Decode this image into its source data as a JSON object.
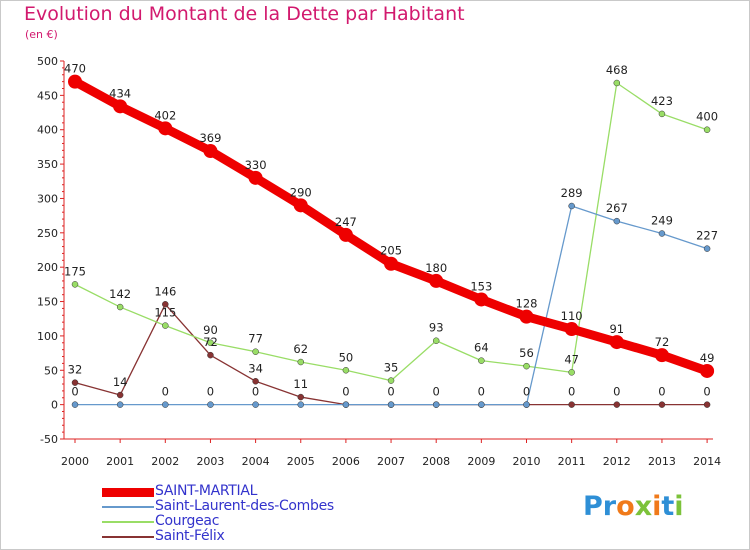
{
  "title": "Evolution du Montant de la Dette par Habitant",
  "subtitle": "(en €)",
  "logo": {
    "text": "Proxiti",
    "letters": [
      {
        "ch": "P",
        "color": "#2e8fd6"
      },
      {
        "ch": "r",
        "color": "#2e8fd6"
      },
      {
        "ch": "o",
        "color": "#f07a1a"
      },
      {
        "ch": "x",
        "color": "#7cc23a"
      },
      {
        "ch": "i",
        "color": "#f07a1a"
      },
      {
        "ch": "t",
        "color": "#2e8fd6"
      },
      {
        "ch": "i",
        "color": "#7cc23a"
      }
    ]
  },
  "chart_data": {
    "type": "line",
    "title": "Evolution du Montant de la Dette par Habitant",
    "ylabel": "(en €)",
    "ylim": [
      -50,
      500
    ],
    "yticks": [
      -50,
      0,
      50,
      100,
      150,
      200,
      250,
      300,
      350,
      400,
      450,
      500
    ],
    "x": [
      "2000",
      "2001",
      "2002",
      "2003",
      "2004",
      "2005",
      "2006",
      "2007",
      "2008",
      "2009",
      "2010",
      "2011",
      "2012",
      "2013",
      "2014"
    ],
    "grid": false,
    "legend_position": "bottom-left",
    "series": [
      {
        "name": "SAINT-MARTIAL",
        "color": "#ee0000",
        "values": [
          470,
          434,
          402,
          369,
          330,
          290,
          247,
          205,
          180,
          153,
          128,
          110,
          91,
          72,
          49
        ]
      },
      {
        "name": "Saint-Laurent-des-Combes",
        "color": "#6699cc",
        "values": [
          0,
          0,
          0,
          0,
          0,
          0,
          0,
          0,
          0,
          0,
          0,
          289,
          267,
          249,
          227
        ]
      },
      {
        "name": "Courgeac",
        "color": "#99dd66",
        "values": [
          175,
          142,
          115,
          90,
          77,
          62,
          50,
          35,
          93,
          64,
          56,
          47,
          468,
          423,
          400
        ]
      },
      {
        "name": "Saint-Félix",
        "color": "#883333",
        "values": [
          32,
          14,
          146,
          72,
          34,
          11,
          0,
          0,
          0,
          0,
          0,
          0,
          0,
          0,
          0
        ]
      }
    ],
    "labels": [
      {
        "value": "470",
        "series": 0,
        "index": 0
      },
      {
        "value": "434",
        "series": 0,
        "index": 1
      },
      {
        "value": "402",
        "series": 0,
        "index": 2
      },
      {
        "value": "369",
        "series": 0,
        "index": 3
      },
      {
        "value": "330",
        "series": 0,
        "index": 4
      },
      {
        "value": "290",
        "series": 0,
        "index": 5
      },
      {
        "value": "247",
        "series": 0,
        "index": 6
      },
      {
        "value": "205",
        "series": 0,
        "index": 7
      },
      {
        "value": "180",
        "series": 0,
        "index": 8
      },
      {
        "value": "153",
        "series": 0,
        "index": 9
      },
      {
        "value": "128",
        "series": 0,
        "index": 10
      },
      {
        "value": "110",
        "series": 0,
        "index": 11
      },
      {
        "value": "91",
        "series": 0,
        "index": 12
      },
      {
        "value": "72",
        "series": 0,
        "index": 13
      },
      {
        "value": "49",
        "series": 0,
        "index": 14
      },
      {
        "value": "0",
        "series": 1,
        "index": 0
      },
      {
        "value": "0",
        "series": 1,
        "index": 2
      },
      {
        "value": "0",
        "series": 1,
        "index": 3
      },
      {
        "value": "0",
        "series": 1,
        "index": 4
      },
      {
        "value": "0",
        "series": 1,
        "index": 6
      },
      {
        "value": "0",
        "series": 1,
        "index": 7
      },
      {
        "value": "0",
        "series": 1,
        "index": 8
      },
      {
        "value": "0",
        "series": 1,
        "index": 9
      },
      {
        "value": "0",
        "series": 1,
        "index": 10
      },
      {
        "value": "289",
        "series": 1,
        "index": 11
      },
      {
        "value": "267",
        "series": 1,
        "index": 12
      },
      {
        "value": "249",
        "series": 1,
        "index": 13
      },
      {
        "value": "227",
        "series": 1,
        "index": 14
      },
      {
        "value": "175",
        "series": 2,
        "index": 0
      },
      {
        "value": "142",
        "series": 2,
        "index": 1
      },
      {
        "value": "115",
        "series": 2,
        "index": 2
      },
      {
        "value": "90",
        "series": 2,
        "index": 3
      },
      {
        "value": "77",
        "series": 2,
        "index": 4
      },
      {
        "value": "62",
        "series": 2,
        "index": 5
      },
      {
        "value": "50",
        "series": 2,
        "index": 6
      },
      {
        "value": "35",
        "series": 2,
        "index": 7
      },
      {
        "value": "93",
        "series": 2,
        "index": 8
      },
      {
        "value": "64",
        "series": 2,
        "index": 9
      },
      {
        "value": "56",
        "series": 2,
        "index": 10
      },
      {
        "value": "47",
        "series": 2,
        "index": 11
      },
      {
        "value": "468",
        "series": 2,
        "index": 12
      },
      {
        "value": "423",
        "series": 2,
        "index": 13
      },
      {
        "value": "400",
        "series": 2,
        "index": 14
      },
      {
        "value": "32",
        "series": 3,
        "index": 0
      },
      {
        "value": "14",
        "series": 3,
        "index": 1
      },
      {
        "value": "146",
        "series": 3,
        "index": 2
      },
      {
        "value": "72",
        "series": 3,
        "index": 3
      },
      {
        "value": "34",
        "series": 3,
        "index": 4
      },
      {
        "value": "11",
        "series": 3,
        "index": 5
      },
      {
        "value": "0",
        "series": 3,
        "index": 11
      },
      {
        "value": "0",
        "series": 3,
        "index": 12
      },
      {
        "value": "0",
        "series": 3,
        "index": 13
      },
      {
        "value": "0",
        "series": 3,
        "index": 14
      }
    ]
  }
}
